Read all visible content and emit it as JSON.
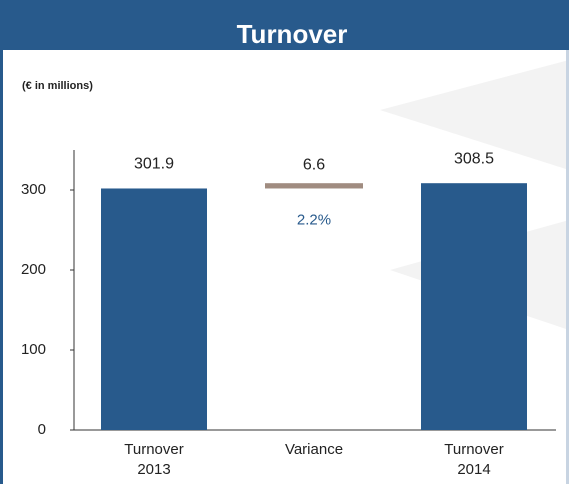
{
  "chart_data": {
    "type": "waterfall",
    "title": "Turnover",
    "subtitle": "(€ in millions)",
    "categories": [
      "Turnover 2013",
      "Variance",
      "Turnover 2014"
    ],
    "values": [
      301.9,
      6.6,
      308.5
    ],
    "measures": [
      "absolute",
      "relative",
      "total"
    ],
    "colors": [
      "#285a8c",
      "#a08c80",
      "#285a8c"
    ],
    "annotation": "2.2%",
    "ylim": [
      0,
      350
    ],
    "yticks": [
      0,
      100,
      200,
      300
    ],
    "grid": false
  }
}
